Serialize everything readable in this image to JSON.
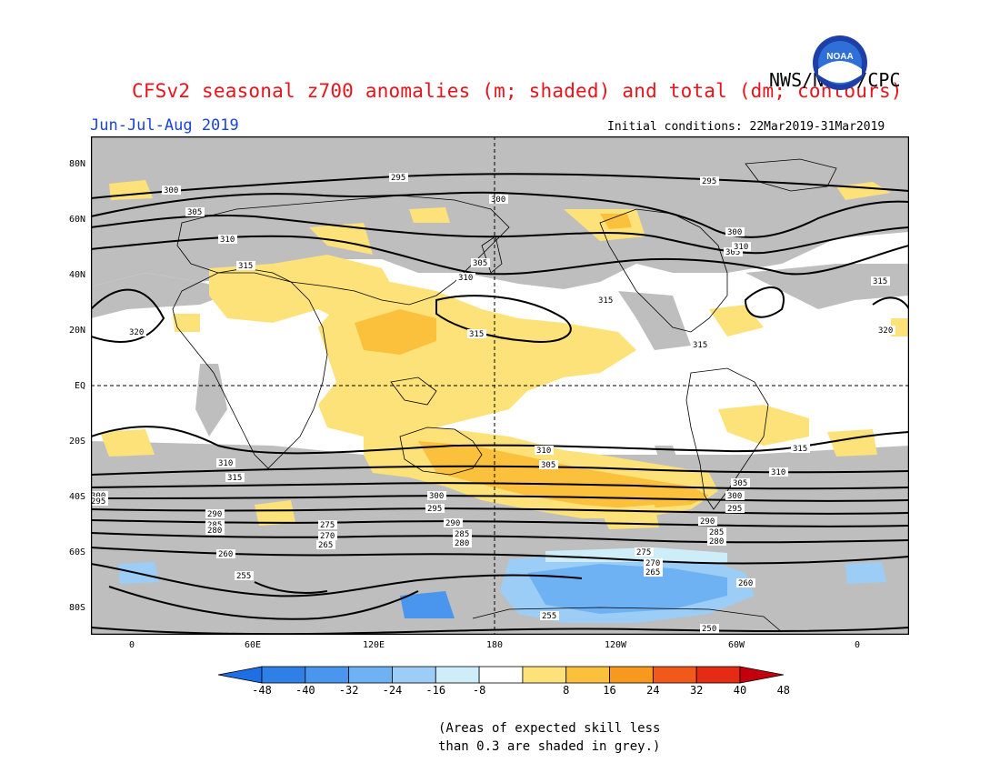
{
  "header": {
    "title": "CFSv2 seasonal z700 anomalies (m; shaded) and total (dm; contours)",
    "org": "NWS/NCEP/CPC",
    "period": "Jun-Jul-Aug 2019",
    "initial_conditions": "Initial conditions: 22Mar2019-31Mar2019",
    "logo_text": "NOAA"
  },
  "axes": {
    "lat_labels": [
      "80N",
      "60N",
      "40N",
      "20N",
      "EQ",
      "20S",
      "40S",
      "60S",
      "80S"
    ],
    "lon_labels": [
      "0",
      "60E",
      "120E",
      "180",
      "120W",
      "60W",
      "0"
    ]
  },
  "contours": {
    "labels": [
      "295",
      "300",
      "305",
      "310",
      "315",
      "320",
      "300",
      "305",
      "310",
      "295",
      "300",
      "305",
      "310",
      "315",
      "320",
      "315",
      "315",
      "315",
      "310",
      "305",
      "300",
      "295",
      "290",
      "285",
      "280",
      "275",
      "270",
      "265",
      "260",
      "255",
      "250",
      "310",
      "315",
      "305",
      "310",
      "315",
      "300",
      "295",
      "290",
      "285",
      "280",
      "275",
      "270",
      "265",
      "260",
      "255",
      "260",
      "260",
      "265",
      "255",
      "260",
      "300",
      "295",
      "290",
      "285",
      "280",
      "275",
      "270",
      "265",
      "260",
      "255",
      "250",
      "255"
    ]
  },
  "colorbar": {
    "ticks": [
      "-48",
      "-40",
      "-32",
      "-24",
      "-16",
      "-8",
      "8",
      "16",
      "24",
      "32",
      "40",
      "48"
    ],
    "colors": [
      "#1e6ee6",
      "#2e7fe6",
      "#4a96ee",
      "#6fb2f3",
      "#9ccdf6",
      "#cdeef8",
      "#ffffff",
      "#fde27a",
      "#fcc13c",
      "#f7991f",
      "#f0591a",
      "#e52b14",
      "#c4000f"
    ]
  },
  "map_colors": {
    "skill_grey": "#bebebe",
    "positive_light": "#fde27a",
    "positive_mid": "#fcc13c",
    "positive_strong": "#f7991f",
    "negative_light": "#9ccdf6",
    "negative_mid": "#6fb2f3",
    "negative_strong": "#4a96ee",
    "negative_faint": "#cdeef8"
  },
  "note": {
    "line1": "(Areas of expected skill less",
    "line2": "than 0.3 are shaded in grey.)"
  }
}
